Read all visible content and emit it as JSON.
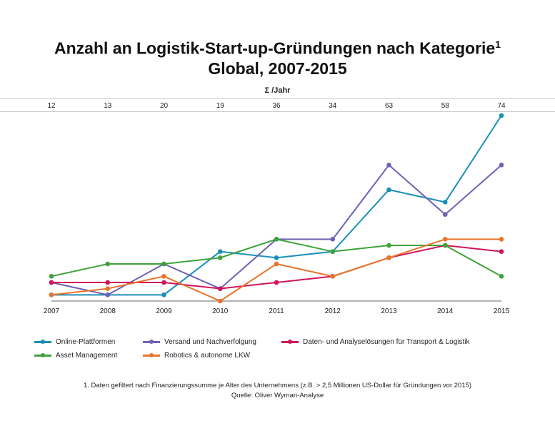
{
  "chart_data": {
    "type": "line",
    "title": "Anzahl an Logistik-Start-up-Gründungen nach Kategorie",
    "title_superscript": "1",
    "subtitle": "Global, 2007-2015",
    "totals_label": "Σ /Jahr",
    "categories": [
      "2007",
      "2008",
      "2009",
      "2010",
      "2011",
      "2012",
      "2013",
      "2014",
      "2015"
    ],
    "totals": [
      12,
      13,
      20,
      19,
      36,
      34,
      63,
      58,
      74
    ],
    "series": [
      {
        "name": "Online-Plattformen",
        "color": "#1a8fb8",
        "values": [
          1,
          1,
          1,
          8,
          7,
          8,
          18,
          16,
          30
        ]
      },
      {
        "name": "Versand und Nachverfolgung",
        "color": "#6c63b5",
        "values": [
          3,
          1,
          6,
          2,
          10,
          10,
          22,
          14,
          22
        ]
      },
      {
        "name": "Daten- und Analyselösungen für Transport & Logistik",
        "color": "#d0155a",
        "values": [
          3,
          3,
          3,
          2,
          3,
          4,
          7,
          9,
          8
        ]
      },
      {
        "name": "Asset Management",
        "color": "#3ea23a",
        "values": [
          4,
          6,
          6,
          7,
          10,
          8,
          9,
          9,
          4
        ]
      },
      {
        "name": "Robotics & autonome LKW",
        "color": "#e8732a",
        "values": [
          1,
          2,
          4,
          0,
          6,
          4,
          7,
          10,
          10
        ]
      }
    ],
    "ylim": [
      0,
      30
    ],
    "grid": false,
    "legend_position": "bottom",
    "footnote": "1. Daten gefiltert nach Finanzierungssumme je Alter des Unternehmens (z.B. > 2,5 Millionen US-Dollar für Gründungen vor 2015)",
    "source": "Quelle: Oliver Wyman-Analyse"
  }
}
